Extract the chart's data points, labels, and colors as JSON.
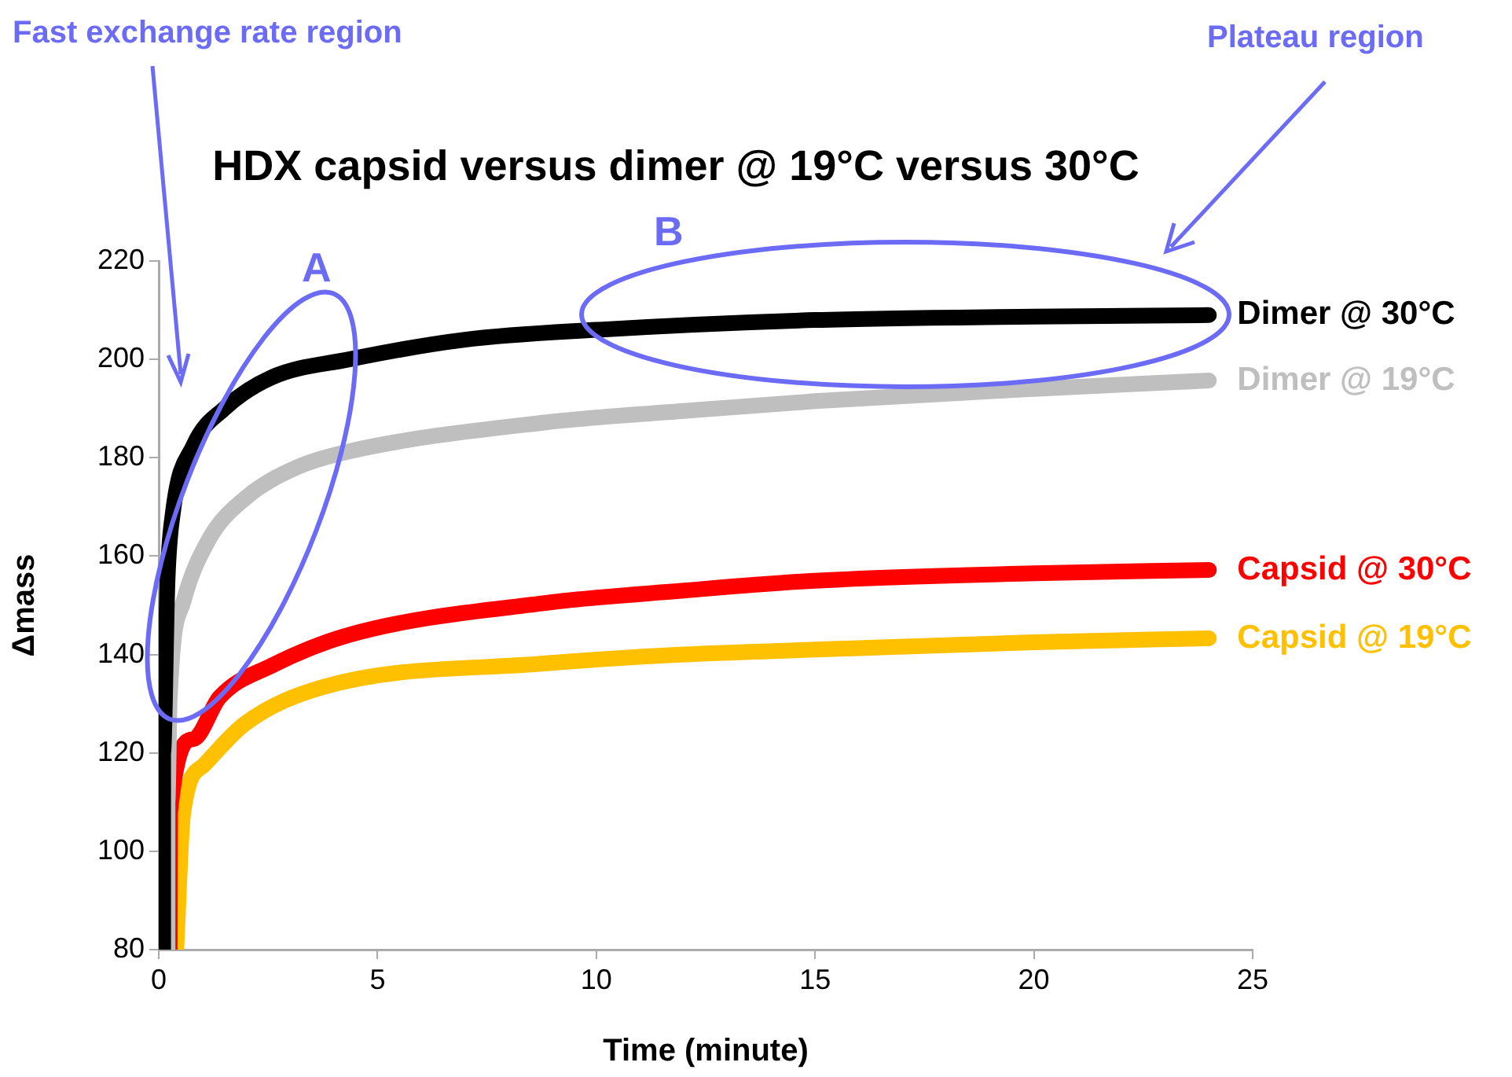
{
  "chart_data": {
    "type": "line",
    "title": "HDX capsid versus dimer @ 19°C versus 30°C",
    "xlabel": "Time (minute)",
    "ylabel": "Δmass",
    "xlim": [
      0,
      25
    ],
    "xticks": [
      0,
      5,
      10,
      15,
      20,
      25
    ],
    "ylim": [
      80,
      220
    ],
    "yticks": [
      80,
      100,
      120,
      140,
      160,
      180,
      200,
      220
    ],
    "grid": false,
    "legend": false,
    "marker": "none",
    "line_style": "solid",
    "annotations": [
      "Fast exchange rate region",
      "Plateau region",
      "A",
      "B"
    ],
    "series": [
      {
        "name": "Dimer @ 30°C",
        "color": "#000000",
        "x": [
          0.1,
          0.1,
          0.2,
          0.32,
          0.79,
          1.5,
          2.57,
          4.35,
          7,
          10,
          15,
          20,
          24
        ],
        "values": [
          80,
          120,
          155,
          168.6,
          182.4,
          190,
          196.3,
          200,
          204,
          206,
          208,
          208.7,
          209
        ]
      },
      {
        "name": "Dimer @ 19°C",
        "color": "#bfbfbf",
        "x": [
          0.2,
          0.2,
          0.25,
          0.56,
          1.14,
          1.98,
          3.17,
          4.35,
          8.86,
          12,
          15,
          20,
          24
        ],
        "values": [
          80,
          110,
          131,
          150.6,
          163.3,
          171.8,
          178.1,
          181.3,
          187.2,
          189.5,
          191.5,
          194,
          195.7
        ]
      },
      {
        "name": "Capsid @ 30°C",
        "color": "#ff0000",
        "x": [
          0.25,
          0.26,
          0.79,
          1.39,
          2.57,
          4.35,
          8.86,
          12,
          15,
          20,
          24
        ],
        "values": [
          80,
          107.9,
          122.8,
          131.3,
          137.7,
          144,
          150.5,
          153,
          155,
          156.5,
          157.2
        ]
      },
      {
        "name": "Capsid @ 19°C",
        "color": "#ffc000",
        "x": [
          0.4,
          0.56,
          1.03,
          1.98,
          3.76,
          8.86,
          12,
          15,
          20,
          24
        ],
        "values": [
          80,
          107.9,
          117.5,
          126,
          133.4,
          138.2,
          140,
          141,
          142.5,
          143.3
        ]
      }
    ]
  }
}
